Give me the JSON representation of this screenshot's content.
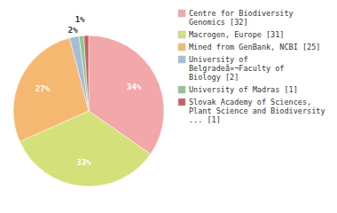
{
  "chart_data": {
    "type": "pie",
    "categories": [
      "Centre for Biodiversity\nGenomics [32]",
      "Macrogen, Europe [31]",
      "Mined from GenBank, NCBI [25]",
      "University of\nBelgradeå¤¬Faculty of\nBiology [2]",
      "University of Madras [1]",
      "Slovak Academy of Sciences,\nPlant Science and Biodiversity\n... [1]"
    ],
    "values": [
      34,
      33,
      27,
      2,
      1,
      1
    ],
    "value_labels": [
      "34%",
      "33%",
      "27%",
      "2%",
      "1%",
      null
    ],
    "colors": [
      "#f2a8a8",
      "#d4e07a",
      "#f5b870",
      "#a8bcd8",
      "#8fc88f",
      "#c86060"
    ],
    "data_labels": true,
    "legend": "right"
  }
}
